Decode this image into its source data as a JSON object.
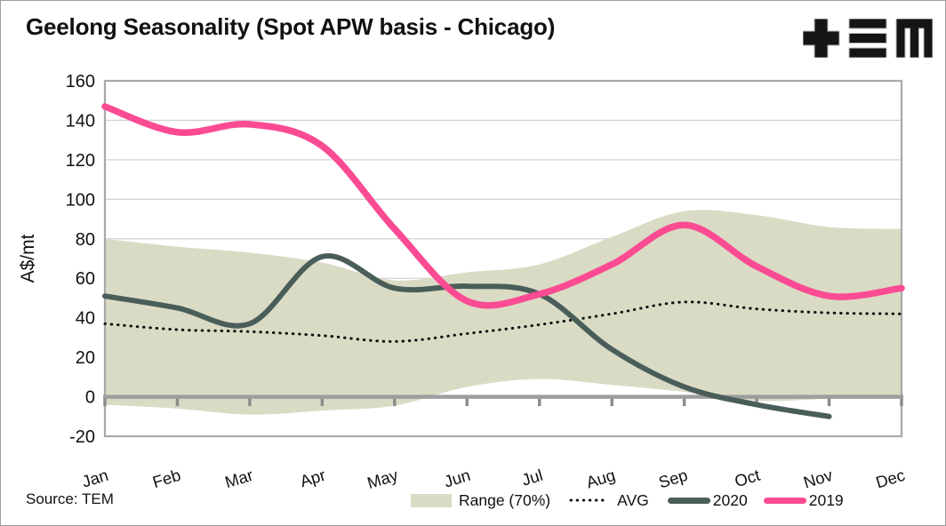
{
  "header": {
    "title": "Geelong Seasonality (Spot APW basis - Chicago)",
    "logo_name": "TEM"
  },
  "source": {
    "text": "Source: TEM"
  },
  "y_axis": {
    "title": "A$/mt",
    "ticks": [
      160,
      140,
      120,
      100,
      80,
      60,
      40,
      20,
      0,
      -20
    ],
    "min": -20,
    "max": 160,
    "step": 20
  },
  "x_axis": {
    "months": [
      "Jan",
      "Feb",
      "Mar",
      "Apr",
      "May",
      "Jun",
      "Jul",
      "Aug",
      "Sep",
      "Oct",
      "Nov",
      "Dec"
    ]
  },
  "legend": {
    "items": [
      {
        "label": "Range (70%)",
        "swatch": "band"
      },
      {
        "label": "AVG",
        "swatch": "dotted"
      },
      {
        "label": "2020",
        "swatch": "line-2020"
      },
      {
        "label": "2019",
        "swatch": "line-2019"
      }
    ]
  },
  "colors": {
    "band": "#dadbc5",
    "avg": "#111111",
    "line_2020": "#4a5e59",
    "line_2019": "#fb4b93",
    "axis": "#a8a8a8",
    "zero_line": "#9e9e9e",
    "grid": "#d3d3d3",
    "text": "#111111"
  },
  "chart_data": {
    "type": "line",
    "title": "Geelong Seasonality (Spot APW basis - Chicago)",
    "xlabel": "",
    "ylabel": "A$/mt",
    "ylim": [
      -20,
      160
    ],
    "grid": "horizontal",
    "legend_position": "bottom",
    "categories": [
      "Jan",
      "Feb",
      "Mar",
      "Apr",
      "May",
      "Jun",
      "Jul",
      "Aug",
      "Sep",
      "Oct",
      "Nov",
      "Dec"
    ],
    "series": [
      {
        "name": "Range (70%)",
        "type": "band",
        "upper": [
          80,
          76,
          73,
          68,
          59,
          63,
          67,
          81,
          94,
          92,
          86,
          85
        ],
        "lower": [
          -4,
          -6,
          -9,
          -7,
          -4.5,
          5,
          9,
          6,
          2.5,
          -2,
          -1,
          1
        ],
        "color": "#dadbc5"
      },
      {
        "name": "AVG",
        "type": "line",
        "style": "dotted",
        "values": [
          37,
          34,
          33,
          31,
          28,
          32,
          36.5,
          42,
          48,
          44.5,
          42.5,
          42
        ],
        "color": "#111111"
      },
      {
        "name": "2020",
        "type": "line",
        "style": "solid",
        "values": [
          51,
          45,
          37,
          71,
          55,
          56,
          52,
          24,
          5,
          -4,
          -10,
          null
        ],
        "color": "#4a5e59"
      },
      {
        "name": "2019",
        "type": "line",
        "style": "solid",
        "values": [
          147,
          134,
          138,
          127,
          85,
          48.5,
          52,
          67,
          87,
          66,
          51,
          55
        ],
        "color": "#fb4b93"
      }
    ]
  }
}
